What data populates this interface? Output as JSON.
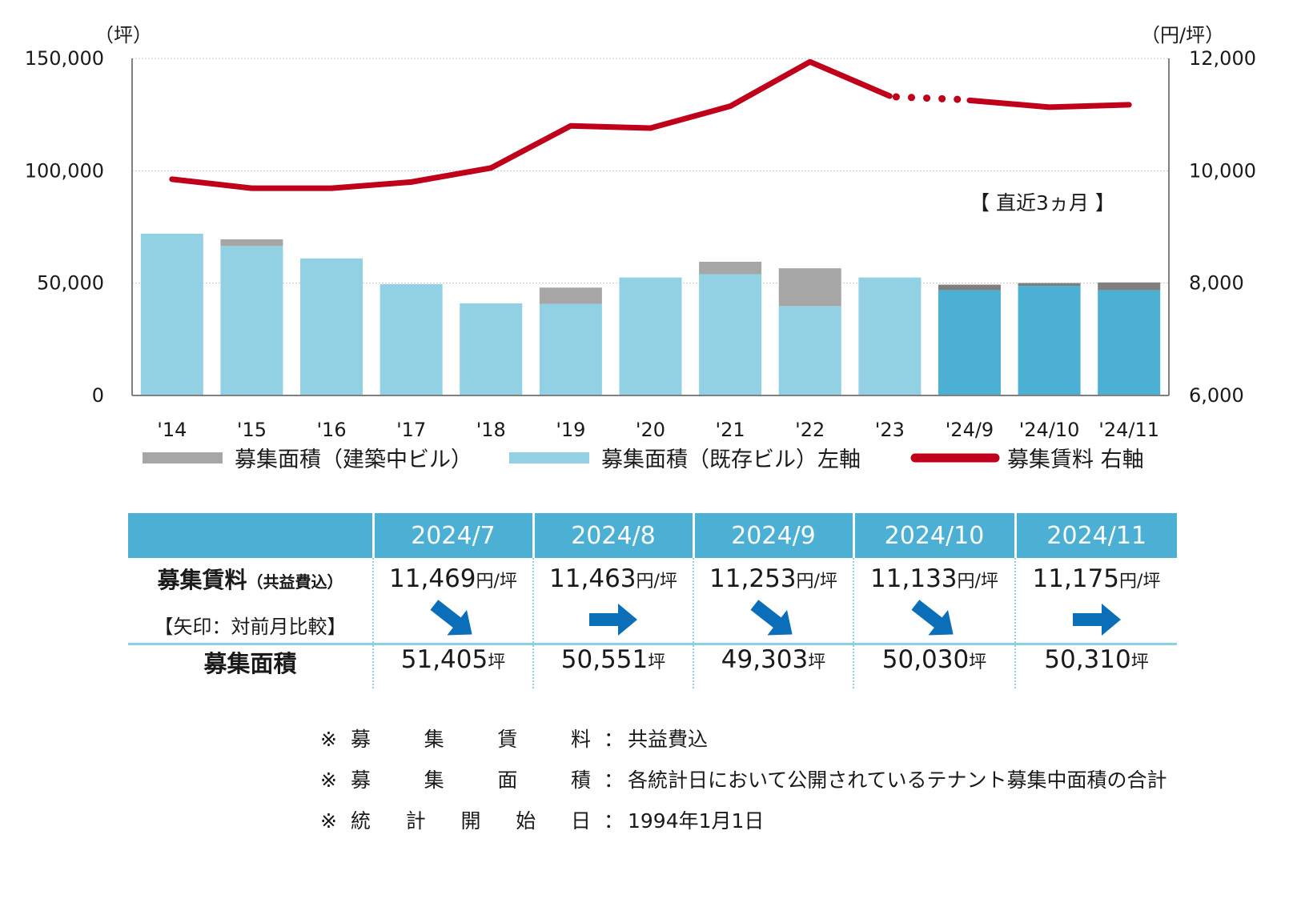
{
  "chart_data": {
    "type": "bar",
    "categories": [
      "'14",
      "'15",
      "'16",
      "'17",
      "'18",
      "'19",
      "'20",
      "'21",
      "'22",
      "'23",
      "'24/9",
      "'24/10",
      "'24/11"
    ],
    "series": [
      {
        "name": "募集面積（既存ビル）左軸",
        "type": "bar",
        "axis": "left",
        "values": [
          72000,
          66500,
          61000,
          49500,
          41000,
          40800,
          52500,
          54000,
          39800,
          52500,
          46800,
          48800,
          46800
        ]
      },
      {
        "name": "募集面積（建築中ビル）",
        "type": "bar",
        "axis": "left",
        "values": [
          0,
          3000,
          0,
          0,
          0,
          7200,
          0,
          5500,
          16800,
          0,
          2500,
          1230,
          3500
        ]
      },
      {
        "name": "募集賃料 右軸",
        "type": "line",
        "axis": "right",
        "values": [
          9850,
          9690,
          9690,
          9800,
          10050,
          10800,
          10760,
          11150,
          11940,
          11330,
          11253,
          11133,
          11175
        ]
      }
    ],
    "left_axis": {
      "unit": "（坪）",
      "ylim": [
        0,
        150000
      ],
      "ticks": [
        "0",
        "50,000",
        "100,000",
        "150,000"
      ]
    },
    "right_axis": {
      "unit": "（円/坪）",
      "ylim": [
        6000,
        12000
      ],
      "ticks": [
        "6,000",
        "8,000",
        "10,000",
        "12,000"
      ]
    },
    "annotation": "【 直近3ヵ月 】",
    "grid": true,
    "legend_position": "bottom",
    "colors": {
      "bar_existing": "#92d0e4",
      "bar_existing_recent": "#4bb0d4",
      "bar_construction": "#a6a6a6",
      "bar_construction_recent": "#7f7f7f",
      "line": "#c0001a"
    }
  },
  "table": {
    "months": [
      "2024/7",
      "2024/8",
      "2024/9",
      "2024/10",
      "2024/11"
    ],
    "rent_label": "募集賃料",
    "rent_label_small": "（共益費込）",
    "arrow_label": "【矢印：対前月比較】",
    "rent_values": [
      "11,469",
      "11,463",
      "11,253",
      "11,133",
      "11,175"
    ],
    "rent_unit": "円/坪",
    "arrows": [
      "down-right",
      "right",
      "down-right",
      "down-right",
      "right"
    ],
    "area_label": "募集面積",
    "area_values": [
      "51,405",
      "50,551",
      "49,303",
      "50,030",
      "50,310"
    ],
    "area_unit": "坪"
  },
  "notes": [
    {
      "mark": "※",
      "label": [
        "募",
        "集",
        "賃",
        "料"
      ],
      "sep": "：",
      "text": "共益費込"
    },
    {
      "mark": "※",
      "label": [
        "募",
        "集",
        "面",
        "積"
      ],
      "sep": "：",
      "text": "各統計日において公開されているテナント募集中面積の合計"
    },
    {
      "mark": "※",
      "label": [
        "統",
        "計",
        "開",
        "始",
        "日"
      ],
      "sep": "：",
      "text": "1994年1月1日"
    }
  ],
  "colors": {
    "header_bg": "#4bb0d4",
    "arrow": "#0a6fb8"
  }
}
